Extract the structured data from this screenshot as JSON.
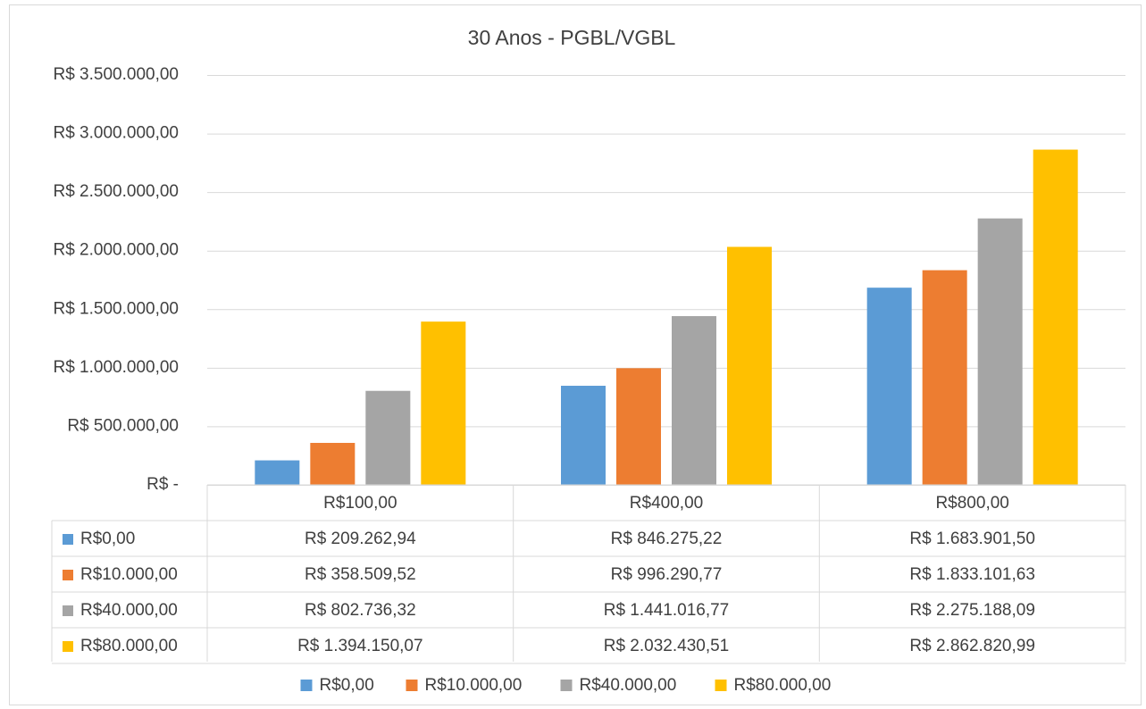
{
  "chart_data": {
    "type": "bar",
    "title": "30 Anos - PGBL/VGBL",
    "categories": [
      "R$100,00",
      "R$400,00",
      "R$800,00"
    ],
    "series": [
      {
        "name": "R$0,00",
        "color": "#5b9bd5",
        "values": [
          209262.94,
          846275.22,
          1683901.5
        ],
        "value_labels": [
          "R$ 209.262,94",
          "R$ 846.275,22",
          "R$ 1.683.901,50"
        ]
      },
      {
        "name": "R$10.000,00",
        "color": "#ed7d31",
        "values": [
          358509.52,
          996290.77,
          1833101.63
        ],
        "value_labels": [
          "R$ 358.509,52",
          "R$ 996.290,77",
          "R$ 1.833.101,63"
        ]
      },
      {
        "name": "R$40.000,00",
        "color": "#a5a5a5",
        "values": [
          802736.32,
          1441016.77,
          2275188.09
        ],
        "value_labels": [
          "R$ 802.736,32",
          "R$ 1.441.016,77",
          "R$ 2.275.188,09"
        ]
      },
      {
        "name": "R$80.000,00",
        "color": "#ffc000",
        "values": [
          1394150.07,
          2032430.51,
          2862820.99
        ],
        "value_labels": [
          "R$ 1.394.150,07",
          "R$ 2.032.430,51",
          "R$ 2.862.820,99"
        ]
      }
    ],
    "ylim": [
      0,
      3500000
    ],
    "yticks": [
      {
        "value": 0,
        "label": "R$ -"
      },
      {
        "value": 500000,
        "label": "R$ 500.000,00"
      },
      {
        "value": 1000000,
        "label": "R$ 1.000.000,00"
      },
      {
        "value": 1500000,
        "label": "R$ 1.500.000,00"
      },
      {
        "value": 2000000,
        "label": "R$ 2.000.000,00"
      },
      {
        "value": 2500000,
        "label": "R$ 2.500.000,00"
      },
      {
        "value": 3000000,
        "label": "R$ 3.000.000,00"
      },
      {
        "value": 3500000,
        "label": "R$ 3.500.000,00"
      }
    ],
    "grid": true,
    "legend": "bottom"
  }
}
